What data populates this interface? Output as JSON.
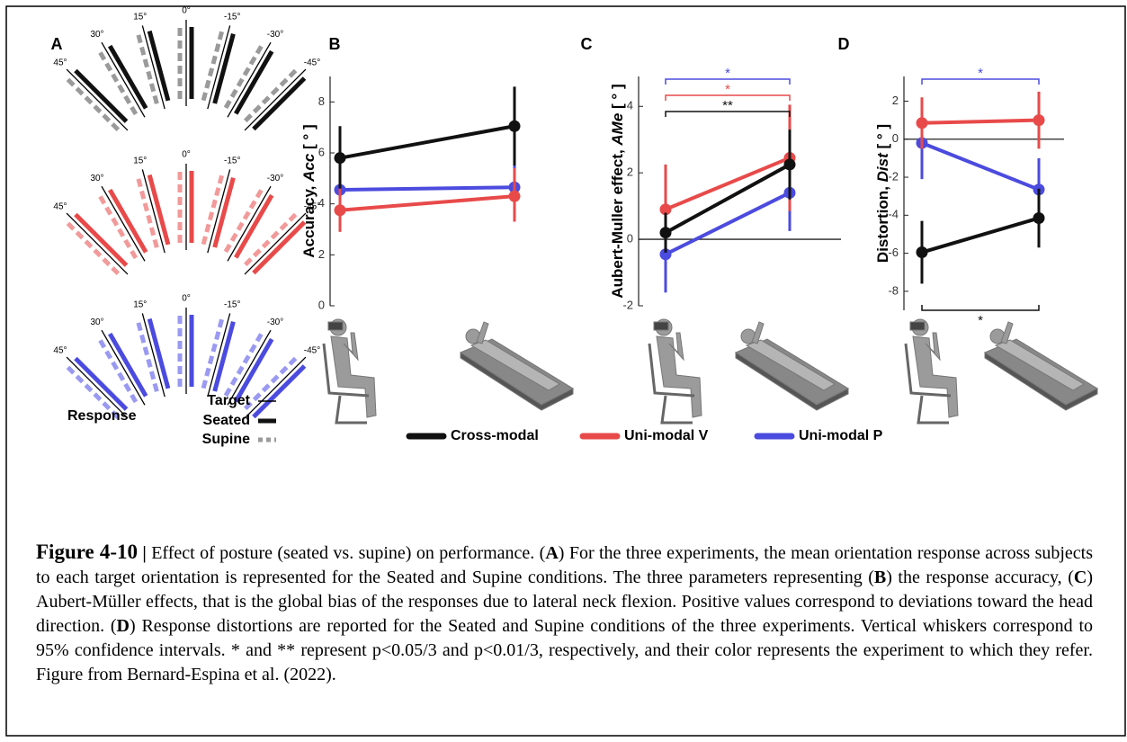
{
  "panel_a": {
    "label": "A",
    "angle_labels": [
      "45°",
      "30°",
      "15°",
      "0°",
      "-15°",
      "-30°",
      "-45°"
    ],
    "rows": [
      {
        "seated_color": "#111111",
        "supine_color": "#9a9a9a"
      },
      {
        "seated_color": "#e84a4a",
        "supine_color": "#f29a9a"
      },
      {
        "seated_color": "#4b4bdf",
        "supine_color": "#9a9af2"
      }
    ],
    "legend": {
      "target": "Target",
      "response": "Response",
      "seated": "Seated",
      "supine": "Supine"
    }
  },
  "chart_data": [
    {
      "type": "line",
      "panel": "B",
      "ylabel": [
        "Accuracy, ",
        "Acc",
        " [ ° ]"
      ],
      "categories": [
        null,
        null
      ],
      "series": [
        {
          "name": "Cross-modal",
          "color": "#111111",
          "values": [
            5.8,
            7.05
          ],
          "ci_low": [
            4.6,
            5.5
          ],
          "ci_high": [
            7.05,
            8.6
          ]
        },
        {
          "name": "Uni-modal V",
          "color": "#e84a4a",
          "values": [
            3.75,
            4.3
          ],
          "ci_low": [
            2.9,
            3.3
          ],
          "ci_high": [
            4.6,
            5.4
          ]
        },
        {
          "name": "Uni-modal P",
          "color": "#4b4bdf",
          "values": [
            4.55,
            4.65
          ],
          "ci_low": [
            3.4,
            3.4
          ],
          "ci_high": [
            5.7,
            5.95
          ]
        }
      ],
      "ylim": [
        0,
        9
      ],
      "yticks": [
        0,
        2,
        4,
        6,
        8
      ],
      "zero_line": false
    },
    {
      "type": "line",
      "panel": "C",
      "ylabel": [
        "Aubert-Muller effect, ",
        "AMe",
        " [ ° ]"
      ],
      "categories": [
        null,
        null
      ],
      "series": [
        {
          "color": "#111111",
          "values": [
            0.2,
            2.25
          ],
          "ci_low": [
            -0.4,
            1.2
          ],
          "ci_high": [
            0.8,
            3.3
          ]
        },
        {
          "color": "#e84a4a",
          "values": [
            0.9,
            2.45
          ],
          "ci_low": [
            -0.3,
            0.85
          ],
          "ci_high": [
            2.25,
            4.05
          ]
        },
        {
          "color": "#4b4bdf",
          "values": [
            -0.45,
            1.4
          ],
          "ci_low": [
            -1.6,
            0.25
          ],
          "ci_high": [
            0.7,
            2.55
          ]
        }
      ],
      "ylim": [
        -2,
        4.9
      ],
      "yticks": [
        -2,
        0,
        2,
        4
      ],
      "zero_line": true,
      "annotations": [
        {
          "text": "*",
          "color": "#4b4bdf"
        },
        {
          "text": "*",
          "color": "#e84a4a"
        },
        {
          "text": "**",
          "color": "#111111"
        }
      ]
    },
    {
      "type": "line",
      "panel": "D",
      "ylabel": [
        "Distortion, ",
        "Dist",
        " [ ° ]"
      ],
      "categories": [
        null,
        null
      ],
      "series": [
        {
          "color": "#111111",
          "values": [
            -5.95,
            -4.15
          ],
          "ci_low": [
            -7.6,
            -5.7
          ],
          "ci_high": [
            -4.3,
            -2.6
          ]
        },
        {
          "color": "#e84a4a",
          "values": [
            0.85,
            1.0
          ],
          "ci_low": [
            -0.5,
            -0.5
          ],
          "ci_high": [
            2.2,
            2.5
          ]
        },
        {
          "color": "#4b4bdf",
          "values": [
            -0.2,
            -2.65
          ],
          "ci_low": [
            -2.1,
            -4.3
          ],
          "ci_high": [
            1.7,
            -1.0
          ]
        }
      ],
      "ylim": [
        -9,
        3.3
      ],
      "yticks": [
        -8,
        -6,
        -4,
        -2,
        0,
        2
      ],
      "zero_line": true,
      "annotations": [
        {
          "text": "*",
          "color": "#4b4bdf"
        },
        {
          "text": "*",
          "color": "#111111",
          "position": "bottom"
        }
      ]
    }
  ],
  "caption": {
    "runs": [
      {
        "text": "Figure 4-10",
        "bold": true,
        "large": true
      },
      {
        "text": " | ",
        "bold": true
      },
      {
        "text": "Effect of posture (seated vs. supine) on performance. ("
      },
      {
        "text": "A",
        "bold": true
      },
      {
        "text": ") For the three experiments, the mean orientation response across subjects to each target orientation is represented for the Seated and Supine conditions. The three parameters representing ("
      },
      {
        "text": "B",
        "bold": true
      },
      {
        "text": ") the response accuracy, ("
      },
      {
        "text": "C",
        "bold": true
      },
      {
        "text": ") Aubert-Müller effects, that is the global bias of the responses due to lateral neck flexion. Positive values correspond to deviations toward the head direction. ("
      },
      {
        "text": "D",
        "bold": true
      },
      {
        "text": ") Response distortions are reported for the Seated and Supine conditions of the three experiments. Vertical whiskers correspond to 95% confidence intervals. * and ** represent p<0.05/3 and p<0.01/3, respectively, and their color represents the experiment to which they refer. Figure from Bernard-Espina et al. (2022)."
      }
    ]
  }
}
